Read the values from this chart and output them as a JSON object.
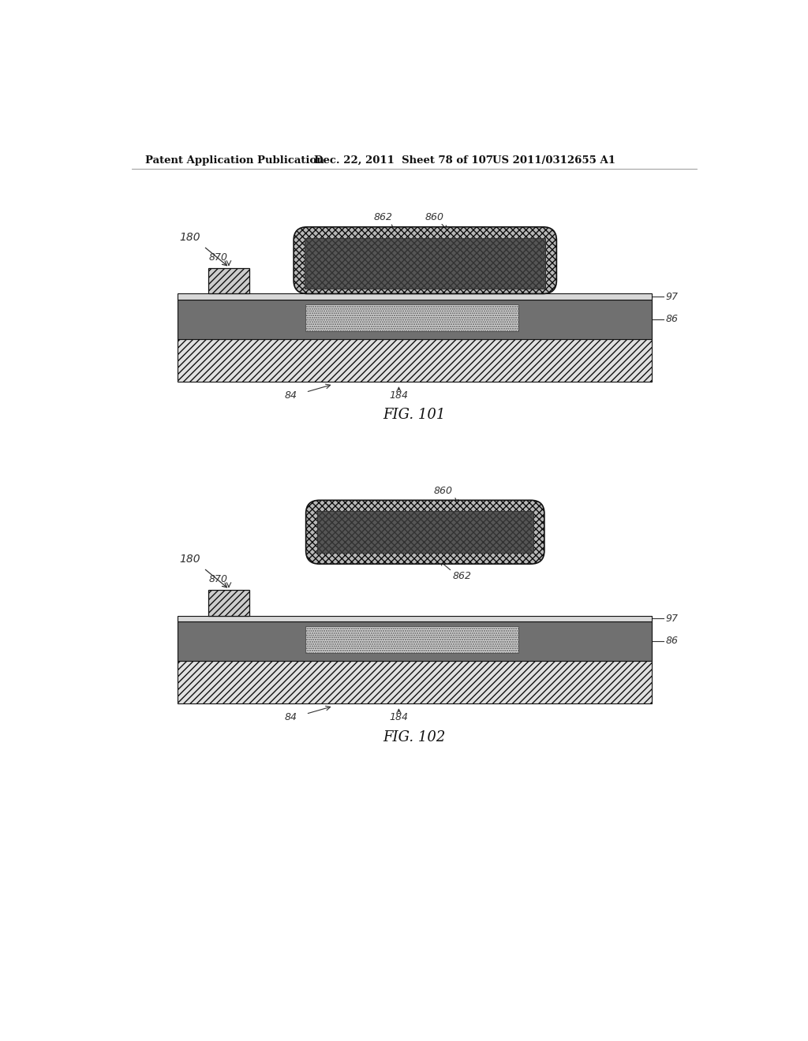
{
  "header_left": "Patent Application Publication",
  "header_mid": "Dec. 22, 2011  Sheet 78 of 107",
  "header_right": "US 2011/0312655 A1",
  "fig1_caption": "FIG. 101",
  "fig2_caption": "FIG. 102",
  "bg_color": "#ffffff"
}
